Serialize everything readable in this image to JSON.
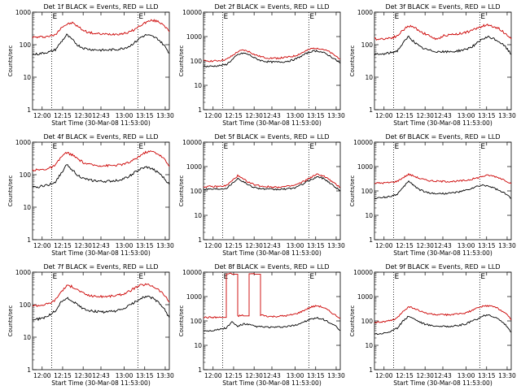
{
  "chart_data": [
    {
      "type": "line",
      "title": "Det 1f BLACK = Events, RED = LLD",
      "ylabel": "Counts/sec",
      "xlabel": "Start Time (30-Mar-08 11:53:00)",
      "x_ticks": [
        "12:00",
        "12:15",
        "12:30",
        "12:43",
        "13:00",
        "13:15",
        "13:30"
      ],
      "y_ticks": [
        "1",
        "10",
        "100",
        "1000"
      ],
      "y_scale": "log",
      "ylim": [
        1,
        1000
      ],
      "xlim": [
        "11:53",
        "13:33"
      ],
      "markers": [
        {
          "time": "12:07",
          "label": "E"
        },
        {
          "time": "13:10",
          "label": "E"
        }
      ],
      "series": [
        {
          "color": "#cc0000",
          "values": [
            170,
            170,
            175,
            185,
            200,
            340,
            420,
            470,
            360,
            270,
            235,
            220,
            212,
            210,
            212,
            215,
            222,
            245,
            300,
            400,
            500,
            560,
            520,
            420,
            250
          ]
        },
        {
          "color": "#000000",
          "values": [
            50,
            52,
            56,
            60,
            70,
            120,
            200,
            140,
            95,
            78,
            72,
            70,
            68,
            68,
            70,
            72,
            78,
            90,
            120,
            170,
            200,
            180,
            150,
            100,
            55
          ]
        }
      ]
    },
    {
      "type": "line",
      "title": "Det 2f BLACK = Events, RED = LLD",
      "ylabel": "Counts/sec",
      "xlabel": "Start Time (30-Mar-08 11:53:00)",
      "x_ticks": [
        "12:00",
        "12:15",
        "12:30",
        "12:43",
        "13:00",
        "13:15",
        "13:30"
      ],
      "y_ticks": [
        "1",
        "10",
        "100",
        "1000",
        "10000"
      ],
      "y_scale": "log",
      "ylim": [
        1,
        10000
      ],
      "xlim": [
        "11:53",
        "13:33"
      ],
      "markers": [
        {
          "time": "12:07",
          "label": "E"
        },
        {
          "time": "13:10",
          "label": "E"
        }
      ],
      "series": [
        {
          "color": "#cc0000",
          "values": [
            100,
            100,
            100,
            105,
            115,
            160,
            240,
            280,
            240,
            180,
            150,
            135,
            130,
            130,
            135,
            145,
            160,
            200,
            260,
            320,
            340,
            300,
            240,
            170,
            120
          ]
        },
        {
          "color": "#000000",
          "values": [
            60,
            60,
            62,
            65,
            72,
            110,
            180,
            210,
            180,
            130,
            105,
            95,
            90,
            90,
            92,
            100,
            115,
            150,
            200,
            250,
            260,
            220,
            170,
            120,
            80
          ]
        }
      ]
    },
    {
      "type": "line",
      "title": "Det 3f BLACK = Events, RED = LLD",
      "ylabel": "Counts/sec",
      "xlabel": "Start Time (30-Mar-08 11:53:00)",
      "x_ticks": [
        "12:00",
        "12:15",
        "12:30",
        "12:43",
        "13:00",
        "13:15",
        "13:30"
      ],
      "y_ticks": [
        "1",
        "10",
        "100",
        "1000"
      ],
      "y_scale": "log",
      "ylim": [
        1,
        1000
      ],
      "xlim": [
        "11:53",
        "13:33"
      ],
      "markers": [
        {
          "time": "12:07",
          "label": "E"
        },
        {
          "time": "13:10",
          "label": "E"
        }
      ],
      "series": [
        {
          "color": "#cc0000",
          "values": [
            150,
            150,
            155,
            165,
            185,
            280,
            380,
            340,
            260,
            210,
            175,
            140,
            190,
            200,
            210,
            220,
            240,
            270,
            320,
            380,
            400,
            360,
            300,
            220,
            150
          ]
        },
        {
          "color": "#000000",
          "values": [
            50,
            50,
            53,
            57,
            65,
            110,
            180,
            120,
            85,
            72,
            65,
            62,
            60,
            60,
            62,
            66,
            72,
            85,
            110,
            150,
            170,
            150,
            120,
            85,
            50
          ]
        }
      ]
    },
    {
      "type": "line",
      "title": "Det 4f BLACK = Events, RED = LLD",
      "ylabel": "Counts/sec",
      "xlabel": "Start Time (30-Mar-08 11:53:00)",
      "x_ticks": [
        "12:00",
        "12:15",
        "12:30",
        "12:43",
        "13:00",
        "13:15",
        "13:30"
      ],
      "y_ticks": [
        "1",
        "10",
        "100",
        "1000"
      ],
      "y_scale": "log",
      "ylim": [
        1,
        1000
      ],
      "xlim": [
        "11:53",
        "13:33"
      ],
      "markers": [
        {
          "time": "12:07",
          "label": "E"
        },
        {
          "time": "13:10",
          "label": "E"
        }
      ],
      "series": [
        {
          "color": "#cc0000",
          "values": [
            140,
            140,
            145,
            160,
            190,
            350,
            480,
            400,
            300,
            230,
            205,
            195,
            190,
            190,
            192,
            198,
            210,
            240,
            300,
            400,
            500,
            520,
            440,
            320,
            180
          ]
        },
        {
          "color": "#000000",
          "values": [
            40,
            42,
            46,
            50,
            60,
            110,
            200,
            140,
            95,
            75,
            68,
            65,
            62,
            62,
            64,
            68,
            75,
            90,
            120,
            150,
            170,
            150,
            120,
            80,
            50
          ]
        }
      ]
    },
    {
      "type": "line",
      "title": "Det 5f BLACK = Events, RED = LLD",
      "ylabel": "Counts/sec",
      "xlabel": "Start Time (30-Mar-08 11:53:00)",
      "x_ticks": [
        "12:00",
        "12:15",
        "12:30",
        "12:43",
        "13:00",
        "13:15",
        "13:30"
      ],
      "y_ticks": [
        "1",
        "10",
        "100",
        "1000",
        "10000"
      ],
      "y_scale": "log",
      "ylim": [
        1,
        10000
      ],
      "xlim": [
        "11:53",
        "13:33"
      ],
      "markers": [
        {
          "time": "12:07",
          "label": "E"
        },
        {
          "time": "13:10",
          "label": "E"
        }
      ],
      "series": [
        {
          "color": "#cc0000",
          "values": [
            150,
            150,
            150,
            155,
            165,
            260,
            420,
            300,
            220,
            180,
            160,
            150,
            145,
            145,
            148,
            155,
            170,
            210,
            280,
            380,
            480,
            420,
            300,
            200,
            140
          ]
        },
        {
          "color": "#000000",
          "values": [
            120,
            120,
            120,
            124,
            130,
            200,
            330,
            240,
            170,
            140,
            125,
            118,
            115,
            115,
            118,
            124,
            135,
            170,
            230,
            300,
            380,
            330,
            230,
            150,
            100
          ]
        }
      ]
    },
    {
      "type": "line",
      "title": "Det 6f BLACK = Events, RED = LLD",
      "ylabel": "Counts/sec",
      "xlabel": "Start Time (30-Mar-08 11:53:00)",
      "x_ticks": [
        "12:00",
        "12:15",
        "12:30",
        "12:43",
        "13:00",
        "13:15",
        "13:30"
      ],
      "y_ticks": [
        "1",
        "10",
        "100",
        "1000",
        "10000"
      ],
      "y_scale": "log",
      "ylim": [
        1,
        10000
      ],
      "xlim": [
        "11:53",
        "13:33"
      ],
      "markers": [
        {
          "time": "12:07",
          "label": "E"
        },
        {
          "time": "13:10",
          "label": "E"
        }
      ],
      "series": [
        {
          "color": "#cc0000",
          "values": [
            210,
            210,
            215,
            225,
            250,
            350,
            480,
            400,
            320,
            280,
            260,
            250,
            245,
            245,
            248,
            255,
            270,
            300,
            340,
            400,
            440,
            400,
            340,
            270,
            200
          ]
        },
        {
          "color": "#000000",
          "values": [
            50,
            52,
            56,
            62,
            75,
            130,
            260,
            160,
            110,
            90,
            80,
            78,
            78,
            80,
            85,
            92,
            105,
            125,
            150,
            170,
            160,
            130,
            100,
            75,
            50
          ]
        }
      ]
    },
    {
      "type": "line",
      "title": "Det 7f BLACK = Events, RED = LLD",
      "ylabel": "Counts/sec",
      "xlabel": "Start Time (30-Mar-08 11:53:00)",
      "x_ticks": [
        "12:00",
        "12:15",
        "12:30",
        "12:43",
        "13:00",
        "13:15",
        "13:30"
      ],
      "y_ticks": [
        "1",
        "10",
        "100",
        "1000"
      ],
      "y_scale": "log",
      "ylim": [
        1,
        1000
      ],
      "xlim": [
        "11:53",
        "13:33"
      ],
      "markers": [
        {
          "time": "12:07",
          "label": "E"
        },
        {
          "time": "13:10",
          "label": "E"
        }
      ],
      "series": [
        {
          "color": "#cc0000",
          "values": [
            95,
            95,
            100,
            110,
            140,
            250,
            380,
            360,
            280,
            220,
            190,
            180,
            178,
            180,
            185,
            195,
            215,
            260,
            330,
            400,
            420,
            380,
            300,
            210,
            120
          ]
        },
        {
          "color": "#000000",
          "values": [
            35,
            36,
            40,
            48,
            65,
            120,
            160,
            130,
            95,
            75,
            66,
            62,
            60,
            60,
            62,
            66,
            75,
            95,
            120,
            160,
            180,
            160,
            120,
            80,
            40
          ]
        }
      ]
    },
    {
      "type": "line",
      "title": "Det 8f BLACK = Events, RED = LLD",
      "ylabel": "Counts/sec",
      "xlabel": "Start Time (30-Mar-08 11:53:00)",
      "x_ticks": [
        "12:00",
        "12:15",
        "12:30",
        "12:43",
        "13:00",
        "13:15",
        "13:30"
      ],
      "y_ticks": [
        "1",
        "10",
        "100",
        "1000",
        "10000"
      ],
      "y_scale": "log",
      "ylim": [
        1,
        10000
      ],
      "xlim": [
        "11:53",
        "13:33"
      ],
      "markers": [
        {
          "time": "12:07",
          "label": "E"
        },
        {
          "time": "13:10",
          "label": "E"
        }
      ],
      "series": [
        {
          "color": "#cc0000",
          "values": [
            140,
            140,
            140,
            140,
            8500,
            8500,
            160,
            170,
            8500,
            8500,
            180,
            160,
            150,
            155,
            160,
            170,
            190,
            230,
            300,
            380,
            420,
            360,
            260,
            180,
            130
          ]
        },
        {
          "color": "#000000",
          "values": [
            40,
            40,
            42,
            46,
            52,
            90,
            60,
            75,
            70,
            60,
            58,
            56,
            55,
            55,
            57,
            60,
            66,
            80,
            100,
            120,
            130,
            115,
            90,
            65,
            40
          ]
        }
      ]
    },
    {
      "type": "line",
      "title": "Det 9f BLACK = Events, RED = LLD",
      "ylabel": "Counts/sec",
      "xlabel": "Start Time (30-Mar-08 11:53:00)",
      "x_ticks": [
        "12:00",
        "12:15",
        "12:30",
        "12:43",
        "13:00",
        "13:15",
        "13:30"
      ],
      "y_ticks": [
        "1",
        "10",
        "100",
        "1000",
        "10000"
      ],
      "y_scale": "log",
      "ylim": [
        1,
        10000
      ],
      "xlim": [
        "11:53",
        "13:33"
      ],
      "markers": [
        {
          "time": "12:07",
          "label": "E"
        },
        {
          "time": "13:10",
          "label": "E"
        }
      ],
      "series": [
        {
          "color": "#cc0000",
          "values": [
            90,
            90,
            95,
            105,
            130,
            250,
            380,
            330,
            250,
            210,
            190,
            180,
            178,
            180,
            185,
            195,
            215,
            260,
            330,
            400,
            420,
            380,
            300,
            210,
            110
          ]
        },
        {
          "color": "#000000",
          "values": [
            30,
            30,
            33,
            38,
            50,
            100,
            160,
            120,
            90,
            72,
            65,
            62,
            60,
            60,
            62,
            66,
            75,
            95,
            120,
            160,
            170,
            150,
            110,
            70,
            35
          ]
        }
      ]
    }
  ]
}
